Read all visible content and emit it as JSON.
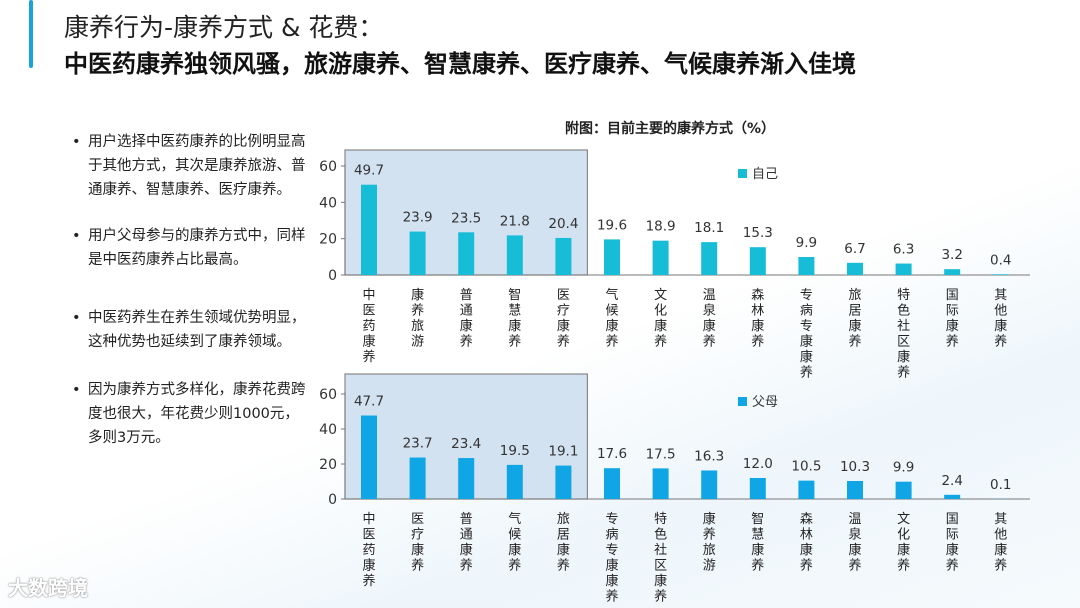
{
  "header": {
    "title": "康养行为-康养方式 & 花费：",
    "subtitle": "中医药康养独领风骚，旅游康养、智慧康养、医疗康养、气候康养渐入佳境"
  },
  "bullets": [
    "用户选择中医药康养的比例明显高于其他方式，其次是康养旅游、普通康养、智慧康养、医疗康养。",
    "用户父母参与的康养方式中，同样是中医药康养占比最高。",
    "中医药养生在养生领域优势明显，这种优势也延续到了康养领域。",
    "因为康养方式多样化，康养花费跨度也很大，年花费少则1000元，多则3万元。"
  ],
  "logo": "大数跨境",
  "chart_data": [
    {
      "type": "bar",
      "title": "附图：目前主要的康养方式（%）",
      "series": [
        {
          "name": "自己",
          "values": [
            49.7,
            23.9,
            23.5,
            21.8,
            20.4,
            19.6,
            18.9,
            18.1,
            15.3,
            9.9,
            6.7,
            6.3,
            3.2,
            0.4
          ]
        }
      ],
      "categories": [
        "中医药康养",
        "康养旅游",
        "普通康养",
        "智慧康养",
        "医疗康养",
        "气候康养",
        "文化康养",
        "温泉康养",
        "森林康养",
        "专病专康康养",
        "旅居康养",
        "特色社区康养",
        "国际康养",
        "其他康养"
      ],
      "ylim": [
        0,
        60
      ],
      "yticks": [
        0,
        20,
        40,
        60
      ],
      "color": "#17bcd6",
      "highlight_top_n": 5,
      "legend": "top-right"
    },
    {
      "type": "bar",
      "series": [
        {
          "name": "父母",
          "values": [
            47.7,
            23.7,
            23.4,
            19.5,
            19.1,
            17.6,
            17.5,
            16.3,
            12.0,
            10.5,
            10.3,
            9.9,
            2.4,
            0.1
          ]
        }
      ],
      "categories": [
        "中医药康养",
        "医疗康养",
        "普通康养",
        "气候康养",
        "旅居康养",
        "专病专康康养",
        "特色社区康养",
        "康养旅游",
        "智慧康养",
        "森林康养",
        "温泉康养",
        "文化康养",
        "国际康养",
        "其他康养"
      ],
      "ylim": [
        0,
        60
      ],
      "yticks": [
        0,
        20,
        40,
        60
      ],
      "color": "#10a6e6",
      "highlight_top_n": 5,
      "legend": "top-right"
    }
  ]
}
